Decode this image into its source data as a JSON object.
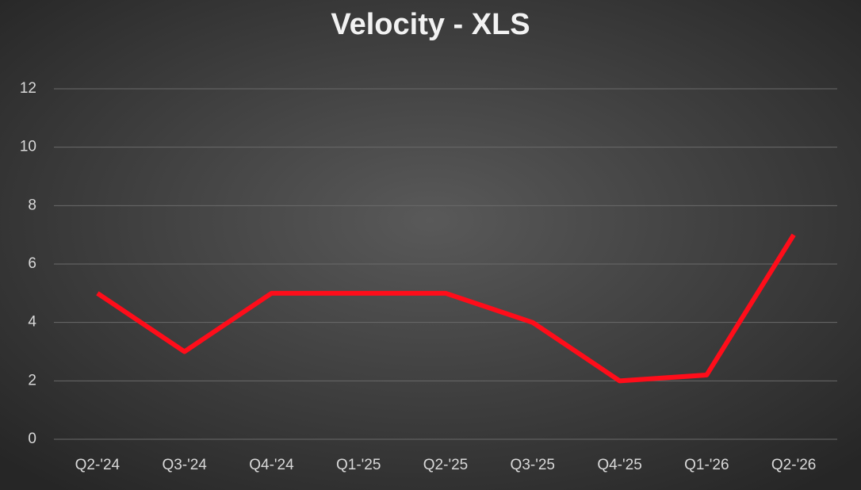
{
  "chart_data": {
    "type": "line",
    "title": "Velocity - XLS",
    "categories": [
      "Q2-'24",
      "Q3-'24",
      "Q4-'24",
      "Q1-'25",
      "Q2-'25",
      "Q3-'25",
      "Q4-'25",
      "Q1-'26",
      "Q2-'26"
    ],
    "values": [
      5,
      3,
      5,
      5,
      5,
      4,
      2,
      2.2,
      7
    ],
    "color": "#ff0d1a",
    "ylim": [
      0,
      12
    ],
    "yticks": [
      0,
      2,
      4,
      6,
      8,
      10,
      12
    ],
    "grid": true
  }
}
